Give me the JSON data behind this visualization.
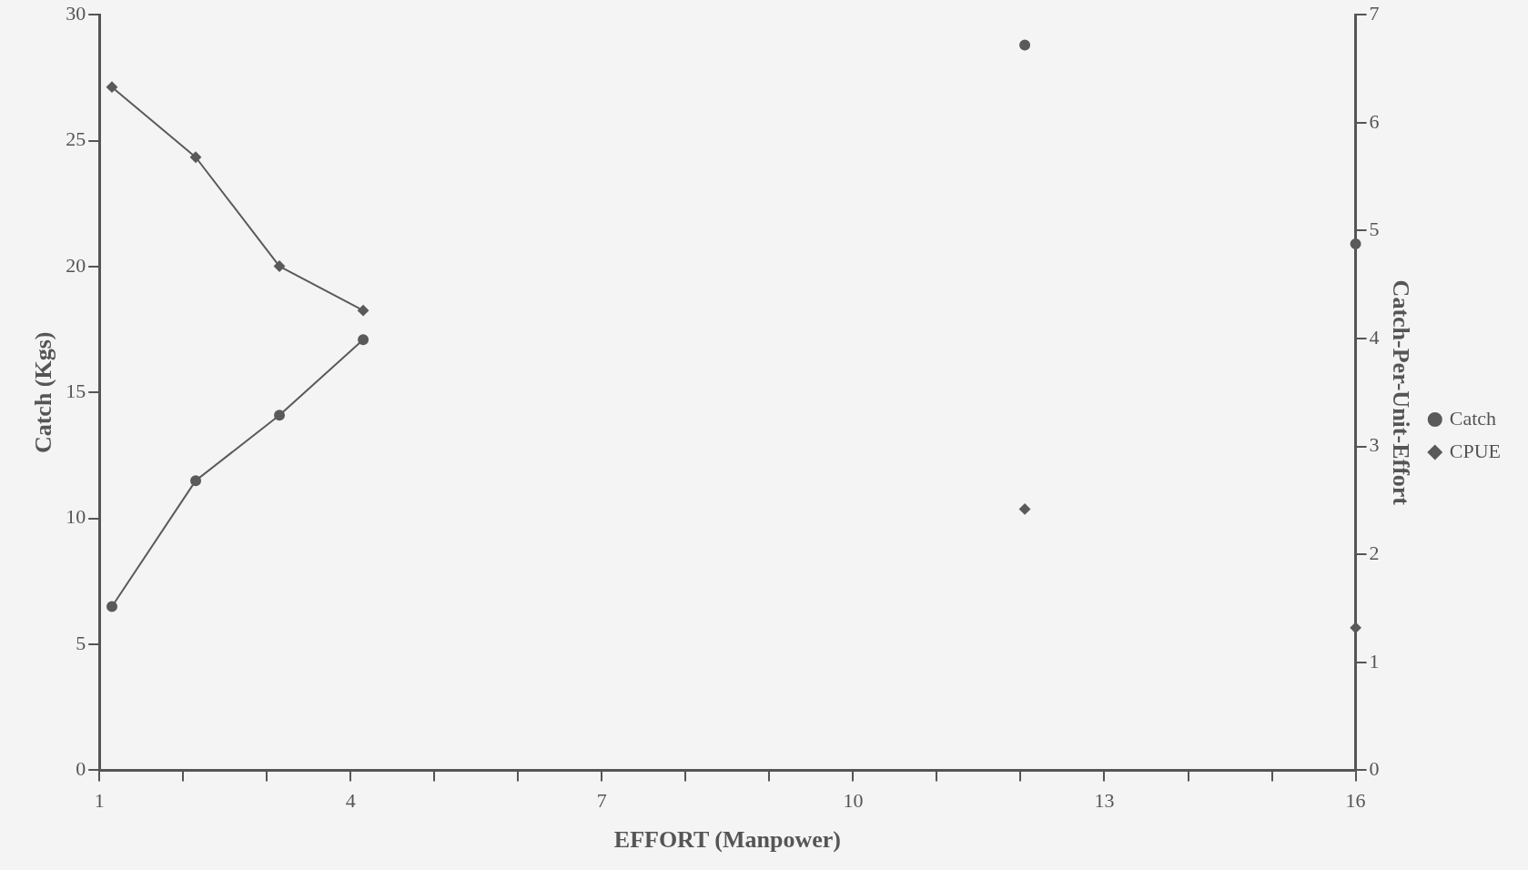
{
  "chart_data": {
    "type": "line",
    "xlabel": "EFFORT (Manpower)",
    "ylabel": "Catch (Kgs)",
    "y2label": "Catch-Per-Unit-Effort",
    "x": [
      1.15,
      2.15,
      3.15,
      4.15,
      8,
      12.05,
      14,
      16
    ],
    "series": [
      {
        "name": "Catch",
        "color": "#5a5a5a",
        "marker": "circle",
        "values": [
          6.5,
          11.5,
          14.1,
          17.1,
          null,
          28.8,
          null,
          20.9
        ]
      },
      {
        "name": "CPUE",
        "color": "#5a5a5a",
        "marker": "diamond",
        "axis": "y2",
        "values": [
          6.33,
          5.68,
          4.67,
          4.26,
          null,
          2.42,
          null,
          1.32
        ]
      }
    ],
    "xlim": [
      1,
      16
    ],
    "xticks": [
      1,
      {
        "value": 2,
        "label": null
      },
      {
        "value": 3,
        "label": null
      },
      4,
      {
        "value": 5,
        "label": null
      },
      {
        "value": 6,
        "label": null
      },
      7,
      {
        "value": 8,
        "label": null
      },
      {
        "value": 9,
        "label": null
      },
      10,
      {
        "value": 11,
        "label": null
      },
      {
        "value": 12,
        "label": null
      },
      13,
      {
        "value": 14,
        "label": null
      },
      {
        "value": 15,
        "label": null
      },
      16
    ],
    "ylim": [
      0,
      30
    ],
    "yticks": [
      0,
      5,
      10,
      15,
      20,
      25,
      30
    ],
    "y2lim": [
      0,
      7
    ],
    "y2ticks": [
      0,
      1,
      2,
      3,
      4,
      5,
      6,
      7
    ],
    "grid": false,
    "legend": "right",
    "line_style": "solid"
  }
}
